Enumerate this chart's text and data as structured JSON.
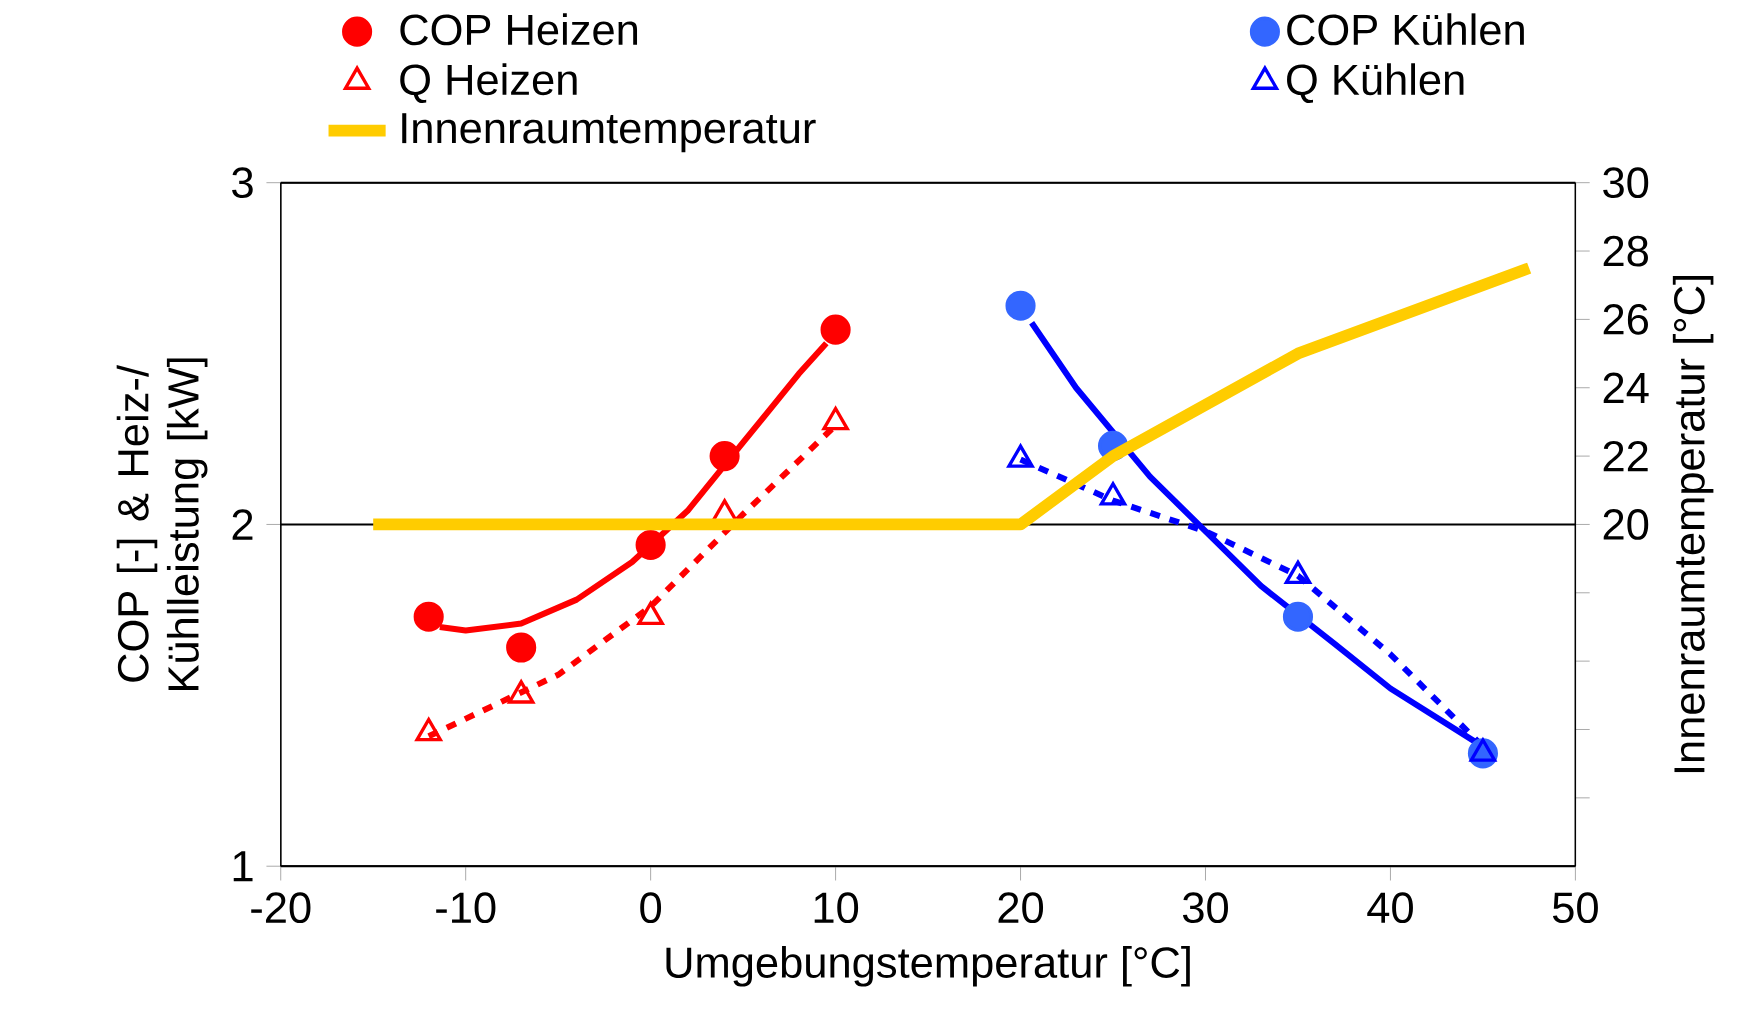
{
  "chart_data": {
    "type": "scatter",
    "xlabel": "Umgebungstemperatur [°C]",
    "ylabel": "COP [-] & Heiz-/ Kühlleistung [kW]",
    "y2label": "Innenraumtemperatur [°C]",
    "xlim": [
      -20,
      50
    ],
    "xticks": [
      -20,
      -10,
      0,
      10,
      20,
      30,
      40,
      50
    ],
    "ylim": [
      1,
      3
    ],
    "yticks": [
      1,
      2,
      3
    ],
    "y2lim": [
      10,
      30
    ],
    "y2ticks": [
      {
        "value": 12,
        "label": null
      },
      {
        "value": 14,
        "label": null
      },
      {
        "value": 16,
        "label": null
      },
      {
        "value": 18,
        "label": null
      },
      20,
      22,
      24,
      26,
      28,
      30
    ],
    "grid": "y",
    "legend": "top",
    "series": [
      {
        "name": "COP Heizen",
        "marker": "circle",
        "color": "#ff0000",
        "x": [
          -12,
          -7,
          0,
          4,
          10
        ],
        "values": [
          1.73,
          1.64,
          1.94,
          2.2,
          2.57
        ]
      },
      {
        "name": "COP Kühlen",
        "marker": "circle",
        "color": "#3366ff",
        "x": [
          20,
          25,
          35,
          45
        ],
        "values": [
          2.64,
          2.23,
          1.73,
          1.33
        ]
      },
      {
        "name": "Q Heizen",
        "marker": "triangle",
        "color": "#ff0000",
        "x": [
          -12,
          -7,
          0,
          4,
          10
        ],
        "values": [
          1.39,
          1.5,
          1.73,
          2.03,
          2.3
        ]
      },
      {
        "name": "Q Kühlen",
        "marker": "triangle",
        "color": "#0000ff",
        "x": [
          20,
          25,
          35,
          45
        ],
        "values": [
          2.19,
          2.08,
          1.85,
          1.33
        ]
      },
      {
        "name": "Innenraumtemperatur",
        "type": "line",
        "axis": "y2",
        "line_style": "solid",
        "color": "#ffcc00",
        "x": [
          -15,
          20,
          25,
          35,
          47.5
        ],
        "values": [
          20,
          20,
          22,
          25,
          27.5
        ]
      },
      {
        "type": "line",
        "line_style": "solid",
        "color": "#ff0000",
        "x": [
          -11.4,
          -10,
          -7,
          -4,
          -1,
          2,
          5,
          8,
          9.5
        ],
        "values": [
          1.7,
          1.69,
          1.71,
          1.78,
          1.89,
          2.04,
          2.24,
          2.44,
          2.53
        ]
      },
      {
        "type": "line",
        "line_style": "dashed",
        "color": "#ff0000",
        "x": [
          -12,
          -5,
          0,
          5,
          10
        ],
        "values": [
          1.38,
          1.56,
          1.76,
          2.03,
          2.29
        ]
      },
      {
        "type": "line",
        "line_style": "solid",
        "color": "#0000ff",
        "x": [
          20.6,
          23,
          27,
          30,
          33,
          37,
          40,
          45
        ],
        "values": [
          2.59,
          2.4,
          2.14,
          1.98,
          1.82,
          1.65,
          1.52,
          1.35
        ]
      },
      {
        "type": "line",
        "line_style": "dashed",
        "color": "#0000ff",
        "x": [
          20,
          25,
          30,
          35,
          40,
          45
        ],
        "values": [
          2.19,
          2.07,
          1.98,
          1.85,
          1.62,
          1.35
        ]
      }
    ]
  }
}
